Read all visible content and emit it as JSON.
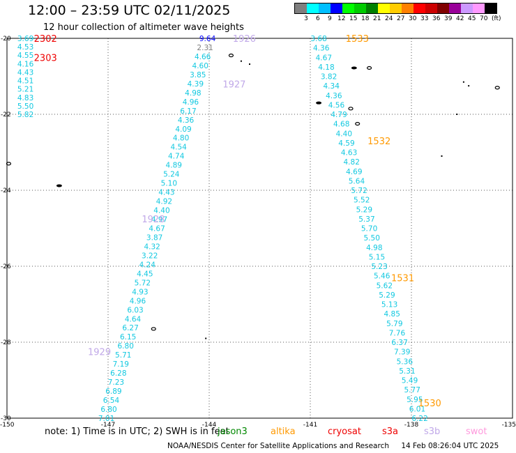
{
  "title": "12:00 – 23:59 UTC 02/11/2025",
  "subtitle": "12 hour collection of altimeter wave heights",
  "scale": {
    "unit_label": "(ft)",
    "levels": [
      {
        "label": "3",
        "color": "#7f7f7f"
      },
      {
        "label": "6",
        "color": "#00ffff"
      },
      {
        "label": "9",
        "color": "#00bfff"
      },
      {
        "label": "12",
        "color": "#0000ff"
      },
      {
        "label": "15",
        "color": "#00ff00"
      },
      {
        "label": "18",
        "color": "#00cc00"
      },
      {
        "label": "21",
        "color": "#008000"
      },
      {
        "label": "24",
        "color": "#ffff00"
      },
      {
        "label": "27",
        "color": "#ffcc00"
      },
      {
        "label": "30",
        "color": "#ff8000"
      },
      {
        "label": "33",
        "color": "#ff0000"
      },
      {
        "label": "36",
        "color": "#cc0000"
      },
      {
        "label": "39",
        "color": "#800000"
      },
      {
        "label": "42",
        "color": "#990099"
      },
      {
        "label": "45",
        "color": "#cc99ff"
      },
      {
        "label": "70",
        "color": "#ff99ff"
      },
      {
        "label": "",
        "color": "#000000"
      }
    ]
  },
  "axes": {
    "lon_ticks": [
      -150,
      -147,
      -144,
      -141,
      -138,
      -135
    ],
    "lat_ticks": [
      -20,
      -22,
      -24,
      -26,
      -28,
      -30
    ],
    "lon_labels": [
      "-150",
      "-147",
      "-144",
      "-141",
      "-138",
      "-135"
    ],
    "lat_labels": [
      "-20",
      "-22",
      "-24",
      "-26",
      "-28",
      "-30"
    ]
  },
  "tracks": [
    {
      "id": "track-west",
      "start_lon": -149.45,
      "start_lat": -20.0,
      "end_lon": -149.45,
      "end_lat": -22.0,
      "values": [
        "3.69",
        "4.53",
        "4.55",
        "4.16",
        "4.43",
        "4.51",
        "5.21",
        "4.83",
        "5.50",
        "5.82"
      ]
    },
    {
      "id": "track-center",
      "start_lon": -144.05,
      "start_lat": -20.0,
      "end_lon": -147.05,
      "end_lat": -30.0,
      "values": [
        "9.64",
        "2.31",
        "4.66",
        "4.60",
        "3.85",
        "4.39",
        "4.98",
        "4.96",
        "6.17",
        "4.36",
        "4.09",
        "4.80",
        "4.54",
        "4.74",
        "4.89",
        "5.24",
        "5.10",
        "4.43",
        "4.92",
        "4.40",
        "4.97",
        "4.67",
        "3.87",
        "4.32",
        "3.22",
        "4.24",
        "4.45",
        "5.72",
        "4.93",
        "4.96",
        "6.03",
        "4.64",
        "6.27",
        "6.15",
        "6.80",
        "5.71",
        "7.19",
        "6.28",
        "7.23",
        "6.89",
        "6.54",
        "6.80",
        "7.01"
      ]
    },
    {
      "id": "track-east",
      "start_lon": -140.75,
      "start_lat": -20.0,
      "end_lon": -137.75,
      "end_lat": -30.0,
      "values": [
        "3.68",
        "4.36",
        "4.67",
        "4.18",
        "3.82",
        "4.34",
        "4.36",
        "4.56",
        "4.79",
        "4.68",
        "4.40",
        "4.59",
        "4.63",
        "4.82",
        "4.69",
        "5.64",
        "5.72",
        "5.52",
        "5.29",
        "5.37",
        "5.70",
        "5.50",
        "4.98",
        "5.15",
        "5.23",
        "5.46",
        "5.62",
        "5.29",
        "5.13",
        "4.85",
        "5.79",
        "7.76",
        "6.37",
        "7.39",
        "5.36",
        "5.31",
        "5.49",
        "5.77",
        "5.95",
        "6.01",
        "6.22"
      ]
    }
  ],
  "time_labels": [
    {
      "text": "2302",
      "lon": -149.2,
      "lat": -20.0,
      "color": "#ee0000"
    },
    {
      "text": "2303",
      "lon": -149.2,
      "lat": -20.5,
      "color": "#ee0000"
    },
    {
      "text": "1926",
      "lon": -143.3,
      "lat": -20.0,
      "color": "#c0a8e8"
    },
    {
      "text": "1927",
      "lon": -143.6,
      "lat": -21.2,
      "color": "#c0a8e8"
    },
    {
      "text": "1928",
      "lon": -146.0,
      "lat": -24.75,
      "color": "#c0a8e8"
    },
    {
      "text": "1929",
      "lon": -147.6,
      "lat": -28.25,
      "color": "#c0a8e8"
    },
    {
      "text": "1533",
      "lon": -139.95,
      "lat": -20.0,
      "color": "#ff9900"
    },
    {
      "text": "1532",
      "lon": -139.3,
      "lat": -22.7,
      "color": "#ff9900"
    },
    {
      "text": "1531",
      "lon": -138.6,
      "lat": -26.3,
      "color": "#ff9900"
    },
    {
      "text": "1530",
      "lon": -137.8,
      "lat": -29.6,
      "color": "#ff9900"
    }
  ],
  "islands": [
    {
      "lon": -143.35,
      "lat": -20.45,
      "shape": "ring"
    },
    {
      "lon": -143.05,
      "lat": -20.6,
      "shape": "dot"
    },
    {
      "lon": -142.8,
      "lat": -20.68,
      "shape": "dot"
    },
    {
      "lon": -139.7,
      "lat": -20.78,
      "shape": "blob"
    },
    {
      "lon": -139.25,
      "lat": -20.78,
      "shape": "ring"
    },
    {
      "lon": -136.45,
      "lat": -21.15,
      "shape": "dot"
    },
    {
      "lon": -136.3,
      "lat": -21.25,
      "shape": "dot"
    },
    {
      "lon": -135.45,
      "lat": -21.3,
      "shape": "ring"
    },
    {
      "lon": -139.8,
      "lat": -21.85,
      "shape": "ring"
    },
    {
      "lon": -140.75,
      "lat": -21.7,
      "shape": "blob"
    },
    {
      "lon": -136.65,
      "lat": -22.0,
      "shape": "dot"
    },
    {
      "lon": -139.6,
      "lat": -22.25,
      "shape": "ring"
    },
    {
      "lon": -137.1,
      "lat": -23.1,
      "shape": "dot"
    },
    {
      "lon": -149.95,
      "lat": -23.3,
      "shape": "ring"
    },
    {
      "lon": -148.45,
      "lat": -23.88,
      "shape": "blob"
    },
    {
      "lon": -145.65,
      "lat": -27.65,
      "shape": "ring"
    },
    {
      "lon": -144.1,
      "lat": -27.9,
      "shape": "dot"
    }
  ],
  "note": {
    "text": "note:  1) Time is in UTC;  2) SWH is in feet",
    "satellites": [
      {
        "name": "jason3",
        "color": "#008800"
      },
      {
        "name": "altika",
        "color": "#ff9900"
      },
      {
        "name": "cryosat",
        "color": "#ee0000"
      },
      {
        "name": "s3a",
        "color": "#ee0000"
      },
      {
        "name": "s3b",
        "color": "#c0a8e8"
      },
      {
        "name": "swot",
        "color": "#ff99dd"
      }
    ]
  },
  "footer": {
    "center": "NOAA/NESDIS Center for Satellite Applications and Research",
    "timestamp": "14 Feb 08:26:04 UTC 2025"
  }
}
